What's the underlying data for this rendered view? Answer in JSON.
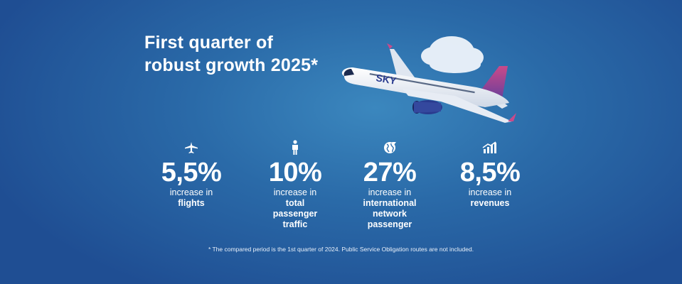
{
  "headline": {
    "line1": "First quarter of",
    "line2": "robust growth 2025*"
  },
  "plane": {
    "logo_text": "SKY",
    "logo_icon": "sky-express-airplane-image"
  },
  "stats": [
    {
      "icon": "airplane-icon",
      "value": "5,5%",
      "line1": "increase in",
      "line2": "flights"
    },
    {
      "icon": "person-icon",
      "value": "10%",
      "line1": "increase in",
      "line2": "total\npassenger\ntraffic"
    },
    {
      "icon": "globe-icon",
      "value": "27%",
      "line1": "increase in",
      "line2": "international\nnetwork\npassenger"
    },
    {
      "icon": "growth-chart-icon",
      "value": "8,5%",
      "line1": "increase in",
      "line2": "revenues"
    }
  ],
  "footnote": "* The compared period is the 1st quarter of 2024. Public Service Obligation routes are not included.",
  "colors": {
    "background_center": "#3b87be",
    "background_edge": "#1f4e93",
    "text": "#ffffff",
    "brand_pink": "#d1467f",
    "brand_navy": "#2a3b8f"
  }
}
